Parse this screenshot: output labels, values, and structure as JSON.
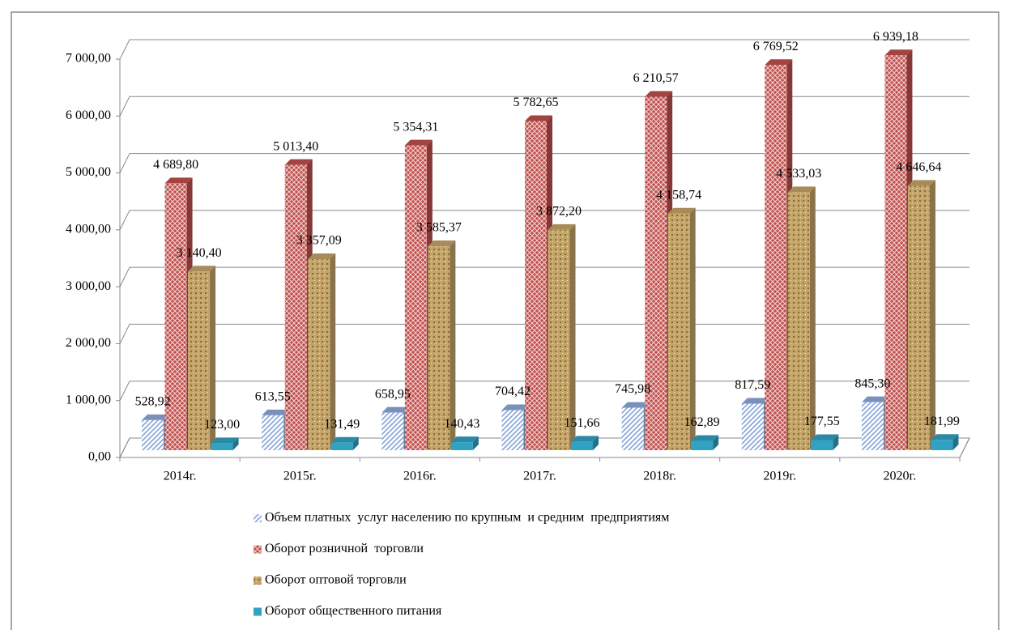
{
  "chart_data": {
    "type": "bar3d",
    "categories": [
      "2014г.",
      "2015г.",
      "2016г.",
      "2017г.",
      "2018г.",
      "2019г.",
      "2020г."
    ],
    "series": [
      {
        "name": "Объем платных  услуг населению по крупным  и средним  предприятиям",
        "color": "#8eaadb",
        "values": [
          528.92,
          613.55,
          658.95,
          704.42,
          745.98,
          817.59,
          845.3
        ],
        "value_labels": [
          "528,92",
          "613,55",
          "658,95",
          "704,42",
          "745,98",
          "817,59",
          "845,30"
        ]
      },
      {
        "name": "Оборот розничной  торговли",
        "color": "#c0504d",
        "values": [
          4689.8,
          5013.4,
          5354.31,
          5782.65,
          6210.57,
          6769.52,
          6939.18
        ],
        "value_labels": [
          "4 689,80",
          "5 013,40",
          "5 354,31",
          "5 782,65",
          "6 210,57",
          "6 769,52",
          "6 939,18"
        ]
      },
      {
        "name": "Оборот оптовой торговли",
        "color": "#c4a56a",
        "values": [
          3140.4,
          3357.09,
          3585.37,
          3872.2,
          4158.74,
          4533.03,
          4646.64
        ],
        "value_labels": [
          "3 140,40",
          "3 357,09",
          "3 585,37",
          "3 872,20",
          "4 158,74",
          "4 533,03",
          "4 646,64"
        ]
      },
      {
        "name": "Оборот общественного питания",
        "color": "#31a2c2",
        "values": [
          123.0,
          131.49,
          140.43,
          151.66,
          162.89,
          177.55,
          181.99
        ],
        "value_labels": [
          "123,00",
          "131,49",
          "140,43",
          "151,66",
          "162,89",
          "177,55",
          "181,99"
        ]
      }
    ],
    "ylim": [
      0,
      7000
    ],
    "yticks": [
      {
        "value": 0,
        "label": "0,00"
      },
      {
        "value": 1000,
        "label": "1 000,00"
      },
      {
        "value": 2000,
        "label": "2 000,00"
      },
      {
        "value": 3000,
        "label": "3 000,00"
      },
      {
        "value": 4000,
        "label": "4 000,00"
      },
      {
        "value": 5000,
        "label": "5 000,00"
      },
      {
        "value": 6000,
        "label": "6 000,00"
      },
      {
        "value": 7000,
        "label": "7 000,00"
      }
    ],
    "grid": true,
    "legend": "bottom"
  }
}
